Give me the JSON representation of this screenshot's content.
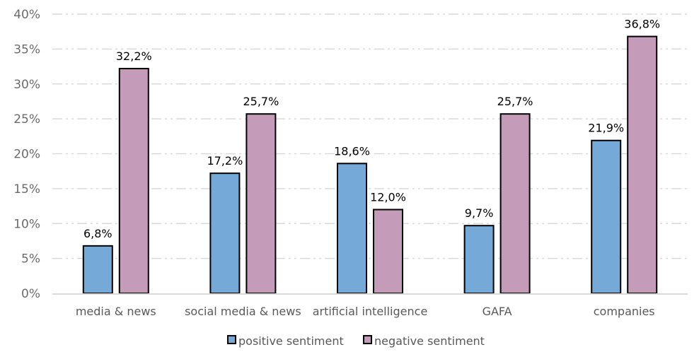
{
  "chart_data": {
    "type": "bar",
    "title": "",
    "xlabel": "",
    "ylabel": "",
    "categories": [
      "media & news",
      "social media & news",
      "artificial intelligence",
      "GAFA",
      "companies"
    ],
    "series": [
      {
        "name": "positive sentiment",
        "color": "#75aad8",
        "values": [
          6.8,
          17.2,
          18.6,
          9.7,
          21.9
        ],
        "labels": [
          "6,8%",
          "17,2%",
          "18,6%",
          "9,7%",
          "21,9%"
        ]
      },
      {
        "name": "negative sentiment",
        "color": "#c49bb9",
        "values": [
          32.2,
          25.7,
          12.0,
          25.7,
          36.8
        ],
        "labels": [
          "32,2%",
          "25,7%",
          "12,0%",
          "25,7%",
          "36,8%"
        ]
      }
    ],
    "ylim": [
      0,
      40
    ],
    "yticks": [
      0,
      5,
      10,
      15,
      20,
      25,
      30,
      35,
      40
    ],
    "ytick_labels": [
      "0%",
      "5%",
      "10%",
      "15%",
      "20%",
      "25%",
      "30%",
      "35%",
      "40%"
    ],
    "grid": true,
    "grid_style": "dash-dot",
    "legend_position": "bottom"
  }
}
